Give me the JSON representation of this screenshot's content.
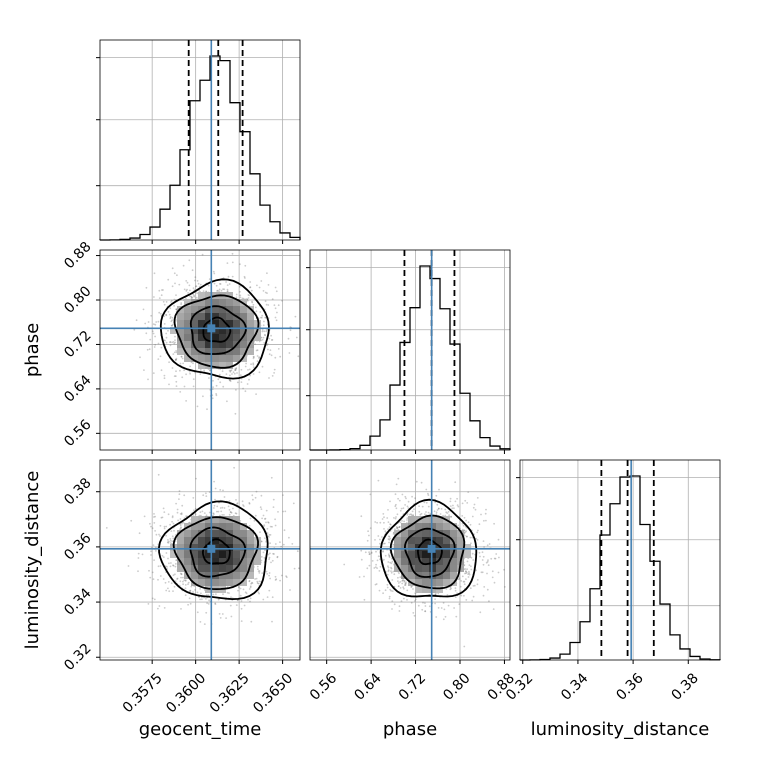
{
  "chart_data": {
    "type": "corner",
    "truth_color": "#4682b4",
    "grid": true,
    "parameters": [
      {
        "name": "geocent_time",
        "label": "geocent_time",
        "range": [
          0.3545,
          0.366
        ],
        "ticks": [
          0.3575,
          0.36,
          0.3625,
          0.365
        ],
        "tick_labels": [
          "0.3575",
          "0.3600",
          "0.3625",
          "0.3650"
        ],
        "truth": 0.3609,
        "quantiles": [
          0.3596,
          0.3613,
          0.3627
        ],
        "hist_mean": 0.3612,
        "hist_sd": 0.00155
      },
      {
        "name": "phase",
        "label": "phase",
        "range": [
          0.53,
          0.89
        ],
        "ticks": [
          0.56,
          0.64,
          0.72,
          0.8,
          0.88
        ],
        "tick_labels": [
          "0.56",
          "0.64",
          "0.72",
          "0.80",
          "0.88"
        ],
        "truth": 0.749,
        "quantiles": [
          0.7,
          0.749,
          0.79
        ],
        "hist_mean": 0.745,
        "hist_sd": 0.043
      },
      {
        "name": "luminosity_distance",
        "label": "luminosity_distance",
        "range": [
          0.319,
          0.3915
        ],
        "ticks": [
          0.32,
          0.34,
          0.36,
          0.38
        ],
        "tick_labels": [
          "0.32",
          "0.34",
          "0.36",
          "0.38"
        ],
        "truth": 0.3593,
        "quantiles": [
          0.3485,
          0.358,
          0.3675
        ],
        "hist_mean": 0.358,
        "hist_sd": 0.0087
      }
    ],
    "y_ticks_2d": {
      "phase": [
        "0.56",
        "0.64",
        "0.72",
        "0.80",
        "0.88"
      ],
      "luminosity_distance": [
        "0.32",
        "0.34",
        "0.36",
        "0.38"
      ]
    }
  }
}
